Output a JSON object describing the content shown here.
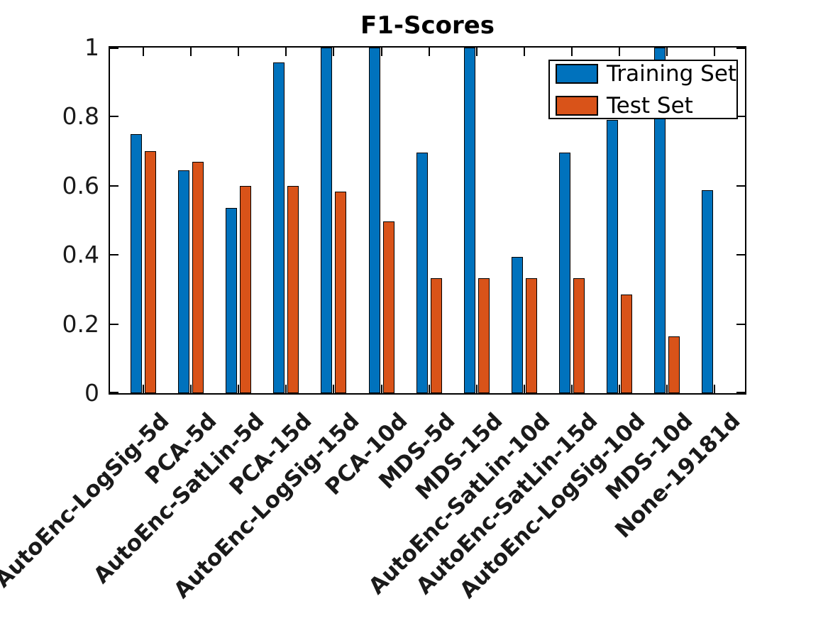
{
  "figure": {
    "title": "F1-Scores"
  },
  "legend": {
    "items": [
      {
        "label": "Training Set",
        "color": "#0072BD"
      },
      {
        "label": "Test Set",
        "color": "#D95319"
      }
    ]
  },
  "chart_data": {
    "type": "bar",
    "title": "F1-Scores",
    "categories": [
      "AutoEnc-LogSig-5d",
      "PCA-5d",
      "AutoEnc-SatLin-5d",
      "PCA-15d",
      "AutoEnc-LogSig-15d",
      "PCA-10d",
      "MDS-5d",
      "MDS-15d",
      "AutoEnc-SatLin-10d",
      "AutoEnc-SatLin-15d",
      "AutoEnc-LogSig-10d",
      "MDS-10d",
      "None-19181d"
    ],
    "series": [
      {
        "name": "Training Set",
        "color": "#0072BD",
        "values": [
          0.75,
          0.645,
          0.535,
          0.957,
          1.0,
          1.0,
          0.696,
          1.0,
          0.394,
          0.696,
          0.79,
          1.0,
          0.587
        ]
      },
      {
        "name": "Test Set",
        "color": "#D95319",
        "values": [
          0.7,
          0.67,
          0.599,
          0.6,
          0.583,
          0.496,
          0.333,
          0.333,
          0.333,
          0.333,
          0.286,
          0.165,
          0
        ]
      }
    ],
    "xlabel": "",
    "ylabel": "",
    "ylim": [
      0,
      1
    ],
    "yticks": [
      0,
      0.2,
      0.4,
      0.6,
      0.8,
      1
    ],
    "ytick_labels": [
      "0",
      "0.2",
      "0.4",
      "0.6",
      "0.8",
      "1"
    ],
    "x_label_rotation_deg": 45,
    "grid": false,
    "legend_position": "top-right",
    "bar_edge_color": "#000000",
    "axis_color": "#000000",
    "background_color": "#FFFFFF"
  }
}
